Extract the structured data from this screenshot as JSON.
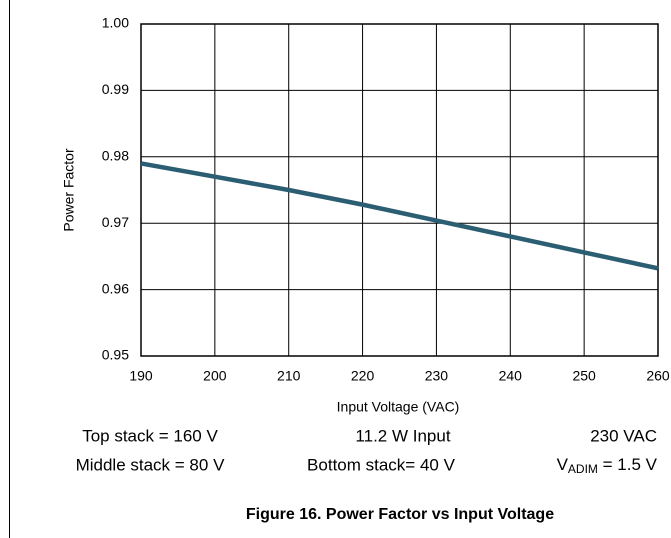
{
  "chart_data": {
    "type": "line",
    "title": "Figure 16. Power Factor vs Input Voltage",
    "x_label": "Input Voltage (VAC)",
    "y_label": "Power Factor",
    "x": [
      190,
      200,
      210,
      220,
      230,
      240,
      250,
      260
    ],
    "series": [
      {
        "name": "Power Factor",
        "color": "#2b5e72",
        "values": [
          0.979,
          0.977,
          0.975,
          0.9728,
          0.9704,
          0.968,
          0.9656,
          0.9632
        ]
      }
    ],
    "xlim": [
      190,
      260
    ],
    "xticks": [
      190,
      200,
      210,
      220,
      230,
      240,
      250,
      260
    ],
    "ylim": [
      0.95,
      1.0
    ],
    "yticks": [
      0.95,
      0.96,
      0.97,
      0.98,
      0.99,
      {
        "value": 1.0,
        "label": "1.00"
      }
    ],
    "grid": true,
    "annotations": [
      "Top stack = 160 V",
      "11.2 W Input",
      "230 VAC",
      "Middle stack = 80 V",
      "Bottom stack= 40 V",
      [
        "V",
        "ADIM",
        " = 1.5 V"
      ]
    ]
  }
}
